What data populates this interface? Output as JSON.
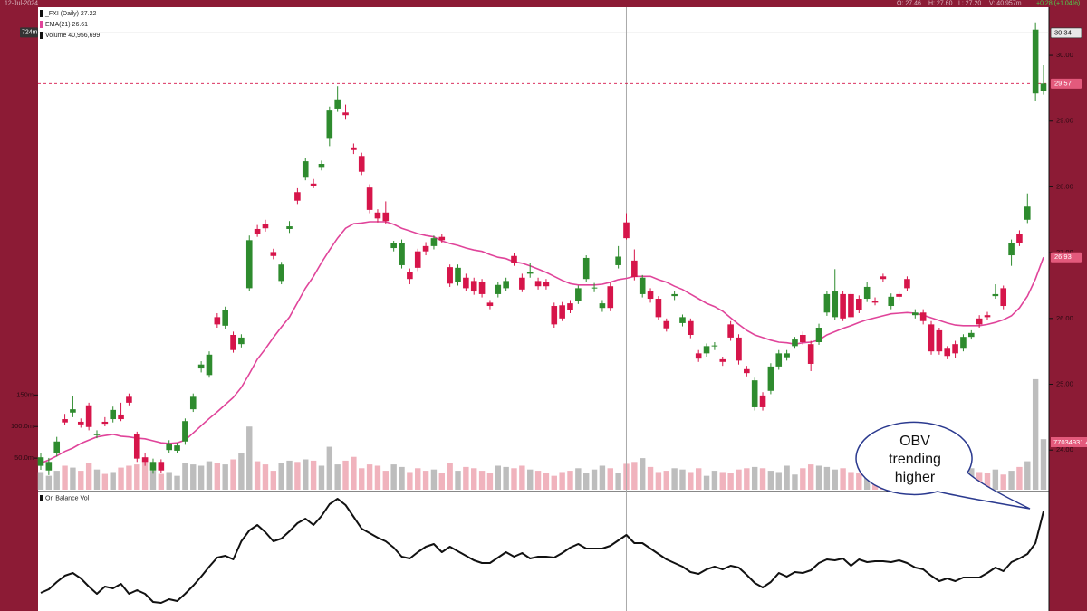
{
  "chart_data": {
    "type": "candlestick",
    "header": {
      "date": "12-Jul-2024",
      "open": "O: 27.46",
      "high": "H: 27.60",
      "low": "L: 27.20",
      "volume": "V: 40.957m",
      "change": "+0.28 (+1.04%)"
    },
    "legend": [
      "_FXI (Daily) 27.22",
      "EMA(21) 26.61",
      "Volume 40,956,699"
    ],
    "up_color": "#2e8b2e",
    "down_color": "#d6154a",
    "ema_color": "#e0449a",
    "volume_up_color": "#bdbdbd",
    "volume_down_color": "#f0b3bd",
    "obv_color": "#111111",
    "grid": false,
    "ylim": [
      23.37,
      30.73
    ],
    "yticks": [
      {
        "value": 24,
        "label": "24.00"
      },
      {
        "value": 25,
        "label": "25.00"
      },
      {
        "value": 26,
        "label": "26.00"
      },
      {
        "value": 27,
        "label": "27.00"
      },
      {
        "value": 28,
        "label": "28.00"
      },
      {
        "value": 29,
        "label": "29.00"
      },
      {
        "value": 30,
        "label": "30.00"
      }
    ],
    "volume_ylim": [
      0,
      764
    ],
    "volume_ticks": [
      {
        "value": 50,
        "label": "50.0m"
      },
      {
        "value": 100,
        "label": "100.0m"
      },
      {
        "value": 150,
        "label": "150m"
      }
    ],
    "obv_label": "On Balance Vol",
    "obv_ylim": [
      0,
      1300
    ],
    "obv_tag": "77034931.4",
    "crosshair": {
      "index": 73,
      "price": 30.34,
      "volume": {
        "value": 724,
        "label": "724m"
      }
    },
    "annotation": [
      "OBV",
      "trending",
      "higher"
    ],
    "open": [
      23.76,
      23.69,
      23.96,
      24.47,
      24.57,
      24.43,
      24.68,
      24.23,
      24.43,
      24.47,
      24.54,
      24.81,
      24.24,
      23.89,
      23.69,
      23.82,
      24.0,
      23.99,
      24.13,
      24.62,
      25.24,
      25.14,
      26.02,
      25.89,
      25.75,
      25.61,
      26.46,
      27.36,
      27.43,
      27.01,
      26.57,
      27.36,
      27.92,
      28.14,
      28.05,
      28.29,
      28.73,
      29.19,
      29.13,
      28.6,
      28.47,
      27.99,
      27.61,
      27.61,
      27.07,
      26.81,
      26.71,
      27.02,
      27.1,
      27.1,
      27.24,
      26.78,
      26.55,
      26.62,
      26.57,
      26.56,
      26.24,
      26.37,
      26.46,
      26.95,
      26.62,
      26.68,
      26.57,
      26.55,
      26.19,
      26.2,
      26.23,
      26.27,
      26.6,
      26.46,
      26.16,
      26.49,
      26.81,
      27.46,
      26.88,
      26.37,
      26.41,
      26.3,
      25.96,
      26.34,
      25.93,
      25.96,
      25.47,
      25.47,
      25.58,
      25.38,
      25.91,
      25.71,
      25.23,
      24.65,
      24.83,
      24.9,
      25.27,
      25.41,
      25.58,
      25.75,
      25.61,
      25.64,
      26.09,
      26.02,
      26.37,
      26.37,
      26.3,
      26.3,
      26.27,
      26.64,
      26.19,
      26.37,
      26.6,
      26.05,
      26.09,
      25.91,
      25.82,
      25.54,
      25.61,
      25.54,
      25.72,
      26.0,
      26.05,
      26.34,
      26.46,
      26.96,
      27.29,
      27.5,
      29.42,
      29.46
    ],
    "high": [
      23.95,
      23.88,
      24.2,
      24.55,
      24.82,
      24.48,
      24.72,
      24.3,
      24.5,
      24.66,
      24.72,
      24.86,
      24.28,
      23.95,
      23.87,
      23.86,
      24.15,
      24.11,
      24.48,
      24.86,
      25.35,
      25.5,
      26.08,
      26.18,
      25.8,
      25.76,
      27.26,
      27.42,
      27.5,
      27.06,
      26.86,
      27.48,
      27.98,
      28.44,
      28.12,
      28.4,
      29.22,
      29.53,
      29.25,
      28.66,
      28.52,
      28.04,
      27.66,
      27.78,
      27.18,
      27.2,
      26.76,
      27.06,
      27.16,
      27.26,
      27.28,
      26.82,
      26.82,
      26.68,
      26.62,
      26.6,
      26.28,
      26.55,
      26.62,
      27.0,
      26.68,
      26.85,
      26.62,
      26.6,
      26.24,
      26.25,
      26.28,
      26.5,
      26.96,
      26.54,
      26.28,
      26.54,
      27.1,
      27.6,
      27.05,
      26.66,
      26.46,
      26.34,
      26.0,
      26.42,
      26.06,
      26.0,
      25.52,
      25.62,
      25.64,
      25.42,
      25.96,
      25.76,
      25.28,
      25.1,
      24.88,
      25.32,
      25.52,
      25.52,
      25.72,
      25.8,
      25.66,
      25.92,
      26.42,
      26.75,
      26.42,
      26.42,
      26.35,
      26.55,
      26.32,
      26.68,
      26.38,
      26.42,
      26.64,
      26.14,
      26.14,
      25.96,
      25.86,
      25.58,
      25.66,
      25.76,
      25.82,
      26.05,
      26.1,
      26.52,
      26.5,
      27.2,
      27.34,
      27.9,
      30.5,
      29.85
    ],
    "low": [
      23.7,
      23.62,
      23.9,
      24.38,
      24.5,
      24.34,
      24.3,
      24.18,
      24.36,
      24.42,
      24.44,
      24.68,
      23.82,
      23.76,
      23.64,
      23.65,
      23.95,
      23.95,
      24.08,
      24.58,
      25.18,
      25.1,
      25.86,
      25.84,
      25.48,
      25.56,
      26.42,
      27.24,
      27.32,
      26.9,
      26.52,
      27.3,
      27.74,
      28.1,
      27.98,
      28.25,
      28.62,
      29.14,
      29.02,
      28.5,
      28.18,
      27.6,
      27.46,
      27.44,
      27.02,
      26.76,
      26.52,
      26.72,
      26.96,
      27.05,
      27.14,
      26.48,
      26.5,
      26.42,
      26.36,
      26.32,
      26.14,
      26.32,
      26.42,
      26.8,
      26.4,
      26.62,
      26.44,
      26.44,
      25.86,
      25.96,
      26.08,
      26.22,
      26.55,
      26.4,
      26.1,
      26.11,
      26.76,
      27.2,
      26.58,
      26.32,
      26.24,
      25.97,
      25.8,
      26.28,
      25.88,
      25.7,
      25.34,
      25.42,
      25.52,
      25.28,
      25.66,
      25.3,
      25.12,
      24.6,
      24.6,
      24.85,
      25.22,
      25.36,
      25.54,
      25.6,
      25.2,
      25.6,
      26.04,
      25.98,
      25.96,
      25.97,
      26.08,
      26.25,
      26.2,
      26.56,
      26.14,
      26.28,
      26.42,
      26.0,
      25.91,
      25.45,
      25.45,
      25.38,
      25.4,
      25.5,
      25.68,
      25.86,
      25.98,
      26.3,
      26.14,
      26.8,
      27.1,
      27.45,
      29.3,
      29.4
    ],
    "close": [
      23.89,
      23.82,
      24.13,
      24.42,
      24.62,
      24.39,
      24.35,
      24.24,
      24.4,
      24.61,
      24.47,
      24.72,
      23.87,
      23.82,
      23.82,
      23.69,
      24.1,
      24.07,
      24.44,
      24.81,
      25.3,
      25.45,
      25.91,
      26.13,
      25.52,
      25.71,
      27.19,
      27.29,
      27.37,
      26.95,
      26.82,
      27.4,
      27.79,
      28.39,
      28.02,
      28.35,
      29.16,
      29.33,
      29.09,
      28.56,
      28.23,
      27.65,
      27.52,
      27.48,
      27.15,
      27.15,
      26.6,
      26.77,
      27.02,
      27.22,
      27.19,
      26.53,
      26.77,
      26.46,
      26.41,
      26.37,
      26.19,
      26.51,
      26.57,
      26.85,
      26.44,
      26.71,
      26.49,
      26.49,
      25.91,
      26.0,
      26.13,
      26.46,
      26.92,
      26.47,
      26.23,
      26.16,
      26.94,
      27.22,
      26.63,
      26.62,
      26.3,
      26.02,
      25.85,
      26.37,
      26.02,
      25.75,
      25.39,
      25.58,
      25.59,
      25.34,
      25.71,
      25.36,
      25.17,
      25.06,
      24.65,
      25.27,
      25.47,
      25.47,
      25.68,
      25.64,
      25.31,
      25.86,
      26.37,
      26.41,
      26.0,
      26.02,
      26.13,
      26.48,
      26.24,
      26.6,
      26.33,
      26.33,
      26.46,
      26.09,
      25.96,
      25.5,
      25.5,
      25.43,
      25.47,
      25.72,
      25.78,
      25.91,
      26.02,
      26.37,
      26.19,
      27.15,
      27.15,
      27.7,
      30.39,
      29.57
    ],
    "ema": [
      23.8,
      23.85,
      23.91,
      23.98,
      24.03,
      24.1,
      24.15,
      24.2,
      24.22,
      24.24,
      24.21,
      24.2,
      24.18,
      24.17,
      24.14,
      24.11,
      24.1,
      24.11,
      24.15,
      24.26,
      24.37,
      24.48,
      24.58,
      24.69,
      24.8,
      24.95,
      25.16,
      25.38,
      25.54,
      25.71,
      25.87,
      26.02,
      26.24,
      26.46,
      26.64,
      26.85,
      27.04,
      27.22,
      27.37,
      27.44,
      27.45,
      27.47,
      27.47,
      27.47,
      27.43,
      27.37,
      27.33,
      27.29,
      27.26,
      27.24,
      27.18,
      27.14,
      27.11,
      27.07,
      27.04,
      27.02,
      26.97,
      26.93,
      26.91,
      26.86,
      26.84,
      26.8,
      26.75,
      26.7,
      26.64,
      26.58,
      26.53,
      26.51,
      26.51,
      26.51,
      26.52,
      26.55,
      26.59,
      26.61,
      26.64,
      26.64,
      26.64,
      26.59,
      26.55,
      26.49,
      26.44,
      26.37,
      26.3,
      26.23,
      26.18,
      26.11,
      26.01,
      25.91,
      25.82,
      25.75,
      25.71,
      25.67,
      25.64,
      25.63,
      25.61,
      25.63,
      25.64,
      25.67,
      25.75,
      25.8,
      25.85,
      25.89,
      25.94,
      25.98,
      26.01,
      26.04,
      26.07,
      26.08,
      26.09,
      26.08,
      26.05,
      26.01,
      25.97,
      25.93,
      25.9,
      25.89,
      25.89,
      25.89,
      25.91,
      25.94,
      25.98,
      26.04,
      26.16,
      26.34,
      26.6,
      26.93
    ],
    "volume": [
      28,
      22,
      30,
      38,
      35,
      30,
      42,
      32,
      25,
      28,
      35,
      38,
      40,
      45,
      30,
      25,
      28,
      22,
      42,
      40,
      38,
      45,
      42,
      40,
      48,
      58,
      100,
      45,
      40,
      30,
      42,
      46,
      44,
      48,
      46,
      38,
      68,
      40,
      46,
      52,
      34,
      40,
      38,
      30,
      40,
      36,
      28,
      34,
      30,
      32,
      26,
      42,
      30,
      36,
      34,
      30,
      26,
      38,
      36,
      34,
      38,
      32,
      30,
      26,
      22,
      28,
      30,
      34,
      26,
      32,
      38,
      34,
      26,
      40.957,
      44,
      50,
      36,
      28,
      30,
      34,
      32,
      28,
      34,
      22,
      30,
      28,
      26,
      32,
      34,
      36,
      34,
      30,
      28,
      38,
      24,
      34,
      40,
      38,
      36,
      32,
      34,
      28,
      26,
      22,
      24,
      30,
      32,
      36,
      22,
      28,
      30,
      26,
      24,
      30,
      32,
      26,
      34,
      28,
      26,
      32,
      24,
      30,
      36,
      45,
      175,
      80
    ],
    "obv": [
      200,
      240,
      320,
      390,
      420,
      360,
      270,
      190,
      270,
      250,
      300,
      190,
      230,
      190,
      100,
      90,
      130,
      110,
      190,
      280,
      380,
      490,
      590,
      610,
      570,
      770,
      890,
      950,
      870,
      770,
      800,
      880,
      970,
      1020,
      950,
      1050,
      1180,
      1240,
      1170,
      1040,
      910,
      860,
      810,
      770,
      700,
      600,
      580,
      650,
      710,
      740,
      650,
      710,
      660,
      610,
      560,
      530,
      530,
      590,
      650,
      600,
      640,
      580,
      600,
      600,
      590,
      640,
      700,
      740,
      690,
      690,
      690,
      720,
      780,
      840,
      750,
      750,
      690,
      630,
      570,
      530,
      490,
      430,
      410,
      460,
      490,
      460,
      500,
      480,
      400,
      310,
      260,
      320,
      420,
      380,
      430,
      420,
      450,
      530,
      570,
      560,
      580,
      500,
      570,
      540,
      550,
      550,
      540,
      560,
      530,
      480,
      460,
      390,
      330,
      360,
      330,
      370,
      370,
      370,
      420,
      480,
      440,
      540,
      580,
      630,
      750,
      1100
    ]
  }
}
